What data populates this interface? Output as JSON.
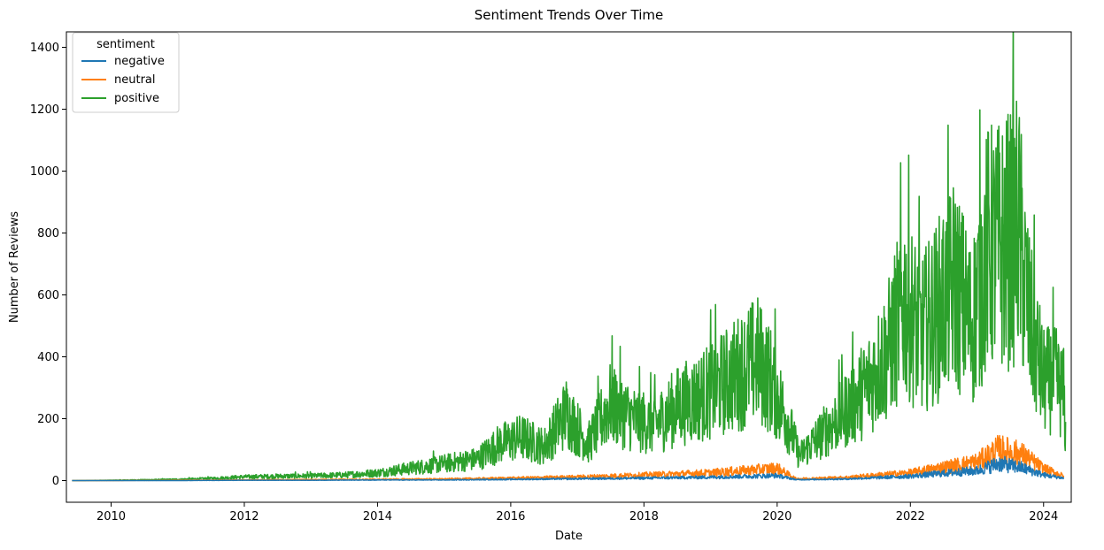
{
  "chart_data": {
    "type": "line",
    "title": "Sentiment Trends Over Time",
    "xlabel": "Date",
    "ylabel": "Number of Reviews",
    "xlim": [
      "2009-05-01",
      "2024-06-01"
    ],
    "ylim": [
      -70,
      1450
    ],
    "x_ticks": [
      "2010",
      "2012",
      "2014",
      "2016",
      "2018",
      "2020",
      "2022",
      "2024"
    ],
    "y_ticks": [
      0,
      200,
      400,
      600,
      800,
      1000,
      1200,
      1400
    ],
    "grid": false,
    "legend": {
      "title": "sentiment",
      "placement": "upper-left"
    },
    "series": [
      {
        "name": "negative",
        "color": "#1f77b4",
        "x": [
          "2009-06-01",
          "2010-01-01",
          "2011-01-01",
          "2012-01-01",
          "2013-01-01",
          "2014-01-01",
          "2015-01-01",
          "2016-01-01",
          "2017-01-01",
          "2018-01-01",
          "2019-01-01",
          "2020-01-01",
          "2020-04-15",
          "2021-01-01",
          "2022-01-01",
          "2022-06-01",
          "2023-01-01",
          "2023-05-01",
          "2023-09-01",
          "2024-01-01",
          "2024-04-20"
        ],
        "y": [
          0,
          0,
          0,
          1,
          1,
          2,
          2,
          4,
          6,
          8,
          11,
          16,
          3,
          5,
          14,
          22,
          32,
          55,
          42,
          18,
          8
        ]
      },
      {
        "name": "neutral",
        "color": "#ff7f0e",
        "x": [
          "2009-06-01",
          "2010-01-01",
          "2011-01-01",
          "2012-01-01",
          "2013-01-01",
          "2014-01-01",
          "2015-01-01",
          "2016-01-01",
          "2017-01-01",
          "2018-01-01",
          "2019-01-01",
          "2020-01-01",
          "2020-04-15",
          "2021-01-01",
          "2022-01-01",
          "2022-06-01",
          "2023-01-01",
          "2023-05-01",
          "2023-09-01",
          "2024-01-01",
          "2024-04-20"
        ],
        "y": [
          0,
          0,
          1,
          2,
          3,
          4,
          5,
          8,
          12,
          18,
          25,
          40,
          6,
          10,
          25,
          40,
          60,
          100,
          85,
          38,
          15
        ]
      },
      {
        "name": "positive",
        "color": "#2ca02c",
        "x": [
          "2009-06-01",
          "2010-01-01",
          "2011-01-01",
          "2011-07-01",
          "2012-01-01",
          "2012-07-01",
          "2013-01-01",
          "2013-07-01",
          "2014-01-01",
          "2014-07-01",
          "2015-01-01",
          "2015-07-01",
          "2015-11-01",
          "2016-03-01",
          "2016-07-01",
          "2016-11-01",
          "2017-03-01",
          "2017-07-01",
          "2017-11-01",
          "2018-03-01",
          "2018-07-01",
          "2018-11-01",
          "2019-03-01",
          "2019-07-01",
          "2019-09-15",
          "2019-12-01",
          "2020-03-01",
          "2020-05-01",
          "2020-09-01",
          "2021-01-01",
          "2021-05-01",
          "2021-09-01",
          "2021-12-01",
          "2022-03-01",
          "2022-06-01",
          "2022-09-01",
          "2022-12-01",
          "2023-03-01",
          "2023-06-01",
          "2023-08-15",
          "2023-10-15",
          "2024-01-01",
          "2024-03-01",
          "2024-04-20",
          "2024-05-01"
        ],
        "y": [
          0,
          1,
          4,
          7,
          12,
          14,
          15,
          18,
          25,
          40,
          55,
          70,
          120,
          140,
          110,
          220,
          120,
          250,
          200,
          180,
          240,
          270,
          310,
          360,
          390,
          320,
          190,
          80,
          150,
          220,
          300,
          420,
          580,
          470,
          550,
          640,
          500,
          750,
          760,
          820,
          520,
          320,
          330,
          280,
          150
        ]
      }
    ]
  }
}
